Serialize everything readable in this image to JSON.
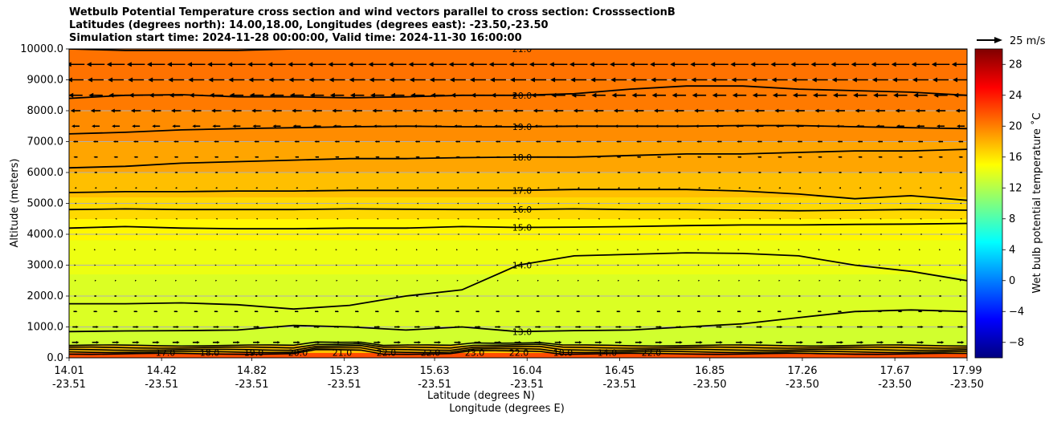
{
  "title": {
    "line1": "Wetbulb Potential Temperature cross section and wind vectors parallel to cross section: CrosssectionB",
    "line2": "Latitudes (degrees north): 14.00,18.00, Longitudes (degrees east): -23.50,-23.50",
    "line3": "Simulation start time: 2024-11-28 00:00:00, Valid time: 2024-11-30 16:00:00"
  },
  "chart_data": {
    "type": "heatmap",
    "ylabel": "Altitude (meters)",
    "xlabel_lat": "Latitude (degrees N)",
    "xlabel_lon": "Longitude (degrees E)",
    "colorbar_label": "Wet bulb potential temperature ˚C",
    "quiver_key": "25 m/s",
    "ylim": [
      0,
      10000
    ],
    "yticks": [
      "0.0",
      "1000.0",
      "2000.0",
      "3000.0",
      "4000.0",
      "5000.0",
      "6000.0",
      "7000.0",
      "8000.0",
      "9000.0",
      "10000.0"
    ],
    "xticks": [
      {
        "lat": "14.01",
        "lon": "-23.51"
      },
      {
        "lat": "14.42",
        "lon": "-23.51"
      },
      {
        "lat": "14.82",
        "lon": "-23.51"
      },
      {
        "lat": "15.23",
        "lon": "-23.51"
      },
      {
        "lat": "15.63",
        "lon": "-23.51"
      },
      {
        "lat": "16.04",
        "lon": "-23.51"
      },
      {
        "lat": "16.45",
        "lon": "-23.51"
      },
      {
        "lat": "16.85",
        "lon": "-23.50"
      },
      {
        "lat": "17.26",
        "lon": "-23.50"
      },
      {
        "lat": "17.67",
        "lon": "-23.50"
      },
      {
        "lat": "17.99",
        "lon": "-23.50"
      }
    ],
    "colorbar_ticks": [
      "−8",
      "−4",
      "0",
      "4",
      "8",
      "12",
      "16",
      "20",
      "24",
      "28"
    ],
    "colorbar_range": [
      -10,
      30
    ],
    "colormap": [
      "#00007f",
      "#0000ff",
      "#007fff",
      "#00ffff",
      "#7fff7f",
      "#ffff00",
      "#ff7f00",
      "#ff0000",
      "#7f0000"
    ],
    "contours": [
      {
        "label": "13.0",
        "level": 13,
        "altitude": [
          850,
          870,
          880,
          900,
          1050,
          1000,
          900,
          1000,
          850,
          880,
          900,
          1000,
          1100,
          1300,
          1500,
          1550,
          1500
        ]
      },
      {
        "label": "14.0",
        "level": 14,
        "altitude": [
          1750,
          1750,
          1780,
          1720,
          1580,
          1700,
          2000,
          2200,
          3000,
          3300,
          3350,
          3400,
          3380,
          3300,
          3000,
          2800,
          2500
        ]
      },
      {
        "label": "15.0",
        "level": 15,
        "altitude": [
          4200,
          4250,
          4200,
          4180,
          4180,
          4200,
          4200,
          4250,
          4220,
          4230,
          4250,
          4280,
          4300,
          4300,
          4320,
          4330,
          4350
        ]
      },
      {
        "label": "16.0",
        "level": 16,
        "altitude": [
          4800,
          4820,
          4800,
          4800,
          4800,
          4820,
          4810,
          4800,
          4800,
          4820,
          4800,
          4800,
          4780,
          4760,
          4780,
          4800,
          4780
        ]
      },
      {
        "label": "17.0",
        "level": 17,
        "altitude": [
          5350,
          5380,
          5380,
          5400,
          5400,
          5420,
          5420,
          5420,
          5420,
          5450,
          5450,
          5450,
          5400,
          5300,
          5150,
          5250,
          5100
        ]
      },
      {
        "label": "18.0",
        "level": 18,
        "altitude": [
          6150,
          6200,
          6300,
          6350,
          6400,
          6450,
          6450,
          6480,
          6500,
          6500,
          6550,
          6600,
          6600,
          6650,
          6700,
          6700,
          6750
        ]
      },
      {
        "label": "19.0",
        "level": 19,
        "altitude": [
          7250,
          7300,
          7380,
          7420,
          7450,
          7480,
          7500,
          7480,
          7480,
          7500,
          7500,
          7500,
          7520,
          7520,
          7480,
          7450,
          7420
        ]
      },
      {
        "label": "20.0",
        "level": 20,
        "altitude": [
          8400,
          8500,
          8520,
          8450,
          8450,
          8420,
          8450,
          8500,
          8500,
          8550,
          8700,
          8800,
          8800,
          8700,
          8650,
          8600,
          8500
        ]
      },
      {
        "label": "21.0",
        "level": 21,
        "altitude": [
          10000,
          9950,
          9950,
          9950,
          10000,
          10000,
          10000,
          10000,
          10000,
          10000,
          10000,
          10000,
          10000,
          10000,
          10000,
          10000,
          10000
        ]
      }
    ],
    "surface_labels": [
      "17.0",
      "18.0",
      "19.0",
      "20.0",
      "21.0",
      "22.0",
      "22.0",
      "23.0",
      "22.0",
      "10.0",
      "14.0",
      "22.0"
    ],
    "color_bands": [
      {
        "altitude_top": 10000,
        "value": 20.5
      },
      {
        "altitude_top": 9000,
        "value": 20.2
      },
      {
        "altitude_top": 8000,
        "value": 19.5
      },
      {
        "altitude_top": 7000,
        "value": 18.5
      },
      {
        "altitude_top": 6000,
        "value": 17.5
      },
      {
        "altitude_top": 5200,
        "value": 16.5
      },
      {
        "altitude_top": 4500,
        "value": 15.3
      },
      {
        "altitude_top": 3800,
        "value": 14.3
      },
      {
        "altitude_top": 2700,
        "value": 13.6
      },
      {
        "altitude_top": 1000,
        "value": 13.2
      },
      {
        "altitude_top": 400,
        "value": 17.5
      },
      {
        "altitude_top": 150,
        "value": 22.0
      }
    ],
    "wind_rows": [
      {
        "altitude": 9500,
        "u": -18
      },
      {
        "altitude": 9000,
        "u": -16
      },
      {
        "altitude": 8500,
        "u": -14
      },
      {
        "altitude": 8000,
        "u": -10
      },
      {
        "altitude": 7500,
        "u": -8
      },
      {
        "altitude": 7000,
        "u": -5
      },
      {
        "altitude": 6500,
        "u": -4
      },
      {
        "altitude": 6000,
        "u": -3
      },
      {
        "altitude": 5500,
        "u": -2
      },
      {
        "altitude": 5000,
        "u": -1.5
      },
      {
        "altitude": 4500,
        "u": -1
      },
      {
        "altitude": 4000,
        "u": -0.5
      },
      {
        "altitude": 3500,
        "u": 0.3
      },
      {
        "altitude": 3000,
        "u": 0.8
      },
      {
        "altitude": 2500,
        "u": 1.5
      },
      {
        "altitude": 2000,
        "u": 2.5
      },
      {
        "altitude": 1500,
        "u": 4
      },
      {
        "altitude": 1000,
        "u": 6
      },
      {
        "altitude": 500,
        "u": 7
      }
    ]
  }
}
